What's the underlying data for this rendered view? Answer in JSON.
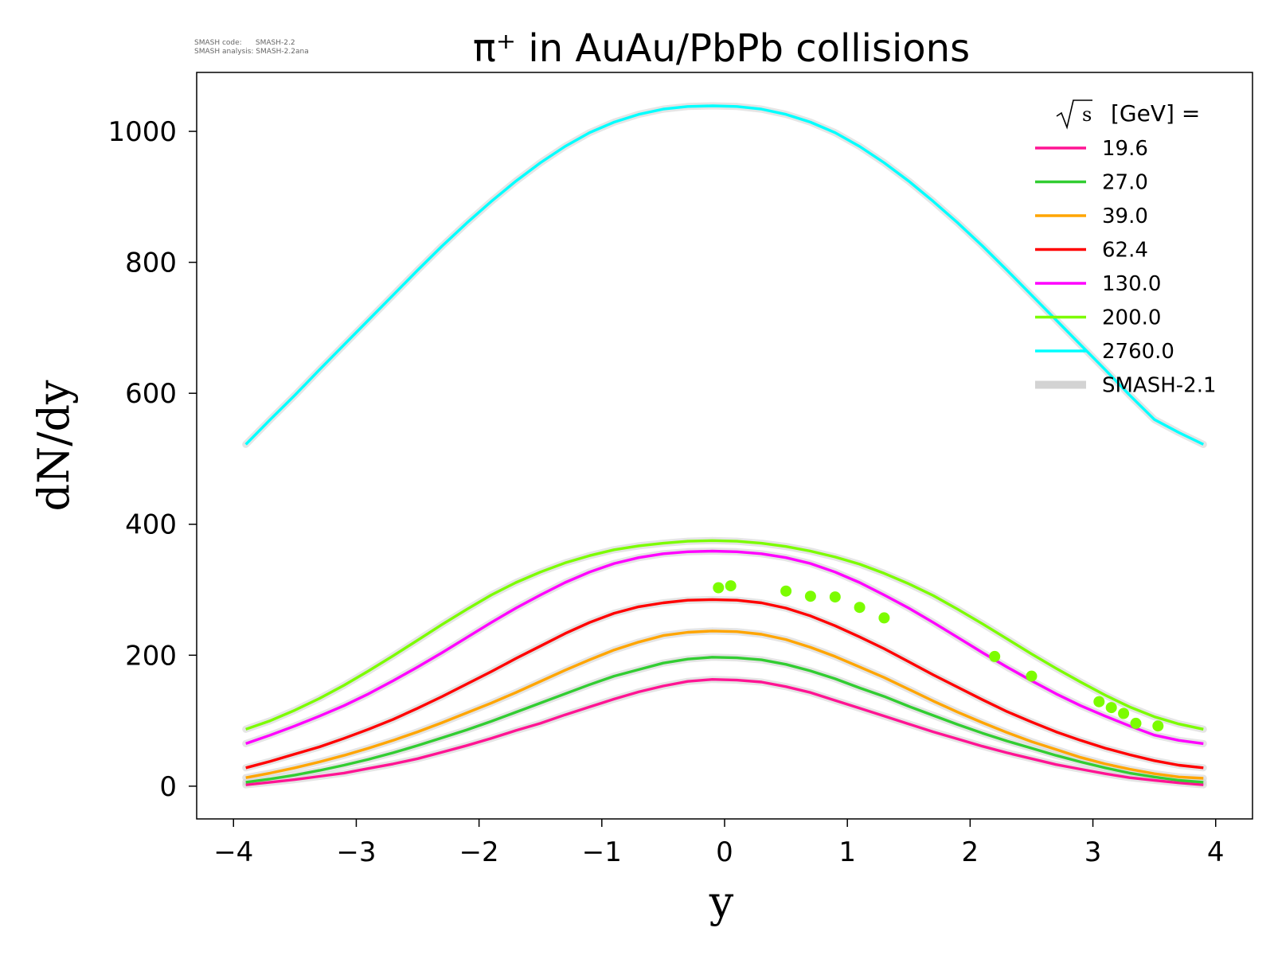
{
  "chart_data": {
    "type": "line",
    "title": "π⁺ in AuAu/PbPb collisions",
    "xlabel": "y",
    "ylabel": "dN/dy",
    "xlim": [
      -4.3,
      4.3
    ],
    "ylim": [
      -50,
      1090
    ],
    "xticks": [
      -4,
      -3,
      -2,
      -1,
      0,
      1,
      2,
      3,
      4
    ],
    "xtick_labels": [
      "−4",
      "−3",
      "−2",
      "−1",
      "0",
      "1",
      "2",
      "3",
      "4"
    ],
    "yticks": [
      0,
      200,
      400,
      600,
      800,
      1000
    ],
    "ytick_labels": [
      "0",
      "200",
      "400",
      "600",
      "800",
      "1000"
    ],
    "grid": false,
    "legend_position": "top-right",
    "legend_title": "[GeV] =",
    "legend_title_symbol": "√s",
    "x": [
      -3.9,
      -3.7,
      -3.5,
      -3.3,
      -3.1,
      -2.9,
      -2.7,
      -2.5,
      -2.3,
      -2.1,
      -1.9,
      -1.7,
      -1.5,
      -1.3,
      -1.1,
      -0.9,
      -0.7,
      -0.5,
      -0.3,
      -0.1,
      0.1,
      0.3,
      0.5,
      0.7,
      0.9,
      1.1,
      1.3,
      1.5,
      1.7,
      1.9,
      2.1,
      2.3,
      2.5,
      2.7,
      2.9,
      3.1,
      3.3,
      3.5,
      3.7,
      3.9
    ],
    "series": [
      {
        "name": "19.6",
        "color": "#ff1493",
        "values": [
          2,
          6,
          10,
          15,
          20,
          27,
          34,
          42,
          52,
          62,
          73,
          85,
          96,
          109,
          121,
          133,
          144,
          153,
          160,
          163,
          162,
          159,
          152,
          143,
          131,
          119,
          107,
          95,
          83,
          72,
          61,
          51,
          42,
          33,
          26,
          19,
          13,
          9,
          5,
          2
        ]
      },
      {
        "name": "27.0",
        "color": "#32cd32",
        "values": [
          6,
          11,
          17,
          24,
          32,
          41,
          51,
          62,
          74,
          86,
          99,
          113,
          127,
          141,
          155,
          168,
          178,
          188,
          194,
          197,
          196,
          193,
          186,
          176,
          164,
          150,
          137,
          122,
          108,
          94,
          81,
          69,
          58,
          47,
          37,
          28,
          20,
          14,
          9,
          6
        ]
      },
      {
        "name": "39.0",
        "color": "#ffa500",
        "values": [
          13,
          20,
          28,
          37,
          47,
          58,
          70,
          83,
          97,
          112,
          127,
          143,
          160,
          177,
          193,
          208,
          220,
          230,
          235,
          237,
          236,
          232,
          224,
          212,
          198,
          182,
          166,
          148,
          130,
          113,
          97,
          82,
          68,
          56,
          44,
          34,
          26,
          19,
          14,
          12
        ]
      },
      {
        "name": "62.4",
        "color": "#ff0000",
        "values": [
          28,
          38,
          49,
          60,
          73,
          87,
          102,
          119,
          137,
          156,
          175,
          195,
          214,
          233,
          250,
          264,
          274,
          280,
          284,
          285,
          284,
          280,
          272,
          260,
          245,
          228,
          210,
          190,
          170,
          151,
          132,
          114,
          98,
          83,
          70,
          58,
          48,
          39,
          32,
          28
        ]
      },
      {
        "name": "130.0",
        "color": "#ff00ff",
        "values": [
          65,
          78,
          92,
          107,
          123,
          141,
          161,
          182,
          204,
          227,
          250,
          272,
          292,
          311,
          327,
          340,
          349,
          355,
          358,
          359,
          358,
          355,
          349,
          340,
          327,
          311,
          292,
          272,
          250,
          227,
          204,
          182,
          161,
          141,
          123,
          107,
          92,
          78,
          70,
          65
        ]
      },
      {
        "name": "200.0",
        "color": "#7cfc00",
        "values": [
          87,
          100,
          116,
          134,
          154,
          176,
          199,
          223,
          247,
          270,
          292,
          311,
          327,
          341,
          352,
          361,
          367,
          371,
          374,
          375,
          374,
          371,
          366,
          359,
          350,
          339,
          325,
          309,
          291,
          270,
          248,
          225,
          202,
          180,
          159,
          139,
          121,
          106,
          95,
          87
        ]
      },
      {
        "name": "2760.0",
        "color": "#00ffff",
        "values": [
          522,
          560,
          597,
          636,
          674,
          712,
          750,
          788,
          825,
          860,
          893,
          924,
          952,
          977,
          998,
          1014,
          1026,
          1034,
          1038,
          1039,
          1038,
          1034,
          1026,
          1014,
          998,
          977,
          952,
          924,
          893,
          860,
          825,
          788,
          750,
          712,
          674,
          636,
          597,
          560,
          540,
          522
        ]
      }
    ],
    "reference": {
      "name": "SMASH-2.1",
      "color": "#d3d3d3"
    },
    "measured_points": {
      "color": "#7cfc00",
      "x": [
        -0.05,
        0.05,
        0.5,
        0.7,
        0.9,
        1.1,
        1.3,
        2.2,
        2.5,
        3.05,
        3.15,
        3.25,
        3.35,
        3.53
      ],
      "y": [
        303,
        306,
        298,
        290,
        289,
        273,
        257,
        198,
        168,
        129,
        120,
        111,
        96,
        92
      ]
    },
    "info_lines": [
      "SMASH code:      SMASH-2.2",
      "SMASH analysis: SMASH-2.2ana"
    ]
  }
}
